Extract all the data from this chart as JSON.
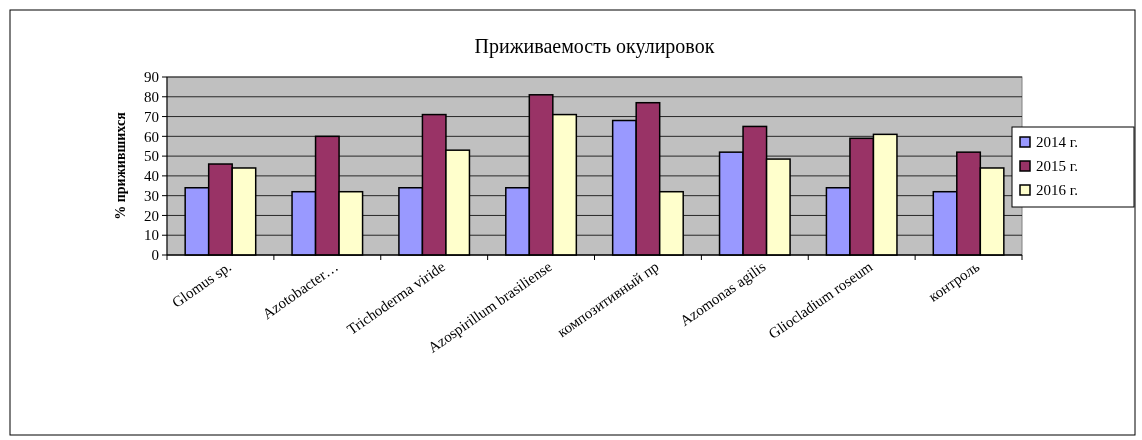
{
  "chart_data": {
    "type": "bar",
    "title": "Приживаемость окулировок",
    "ylabel": "% прижившихся",
    "categories": [
      "Glomus sp.",
      "Azotobacter…",
      "Trichoderma viride",
      "Azospirillum brasiliense",
      "композитивный пр",
      "Azomonas agilis",
      "Gliocladium roseum",
      "контроль"
    ],
    "series": [
      {
        "name": "2014 г.",
        "color": "#9999ff",
        "values": [
          34,
          32,
          34,
          34,
          68,
          52,
          34,
          32
        ]
      },
      {
        "name": "2015 г.",
        "color": "#993366",
        "values": [
          46,
          60,
          71,
          81,
          77,
          65,
          59,
          52
        ]
      },
      {
        "name": "2016 г.",
        "color": "#ffffcc",
        "values": [
          44,
          32,
          53,
          71,
          32,
          48.5,
          61,
          44
        ]
      }
    ],
    "ylim": [
      0,
      90
    ],
    "yticks": [
      0,
      10,
      20,
      30,
      40,
      50,
      60,
      70,
      80,
      90
    ],
    "grid": "y",
    "legend": "right"
  }
}
